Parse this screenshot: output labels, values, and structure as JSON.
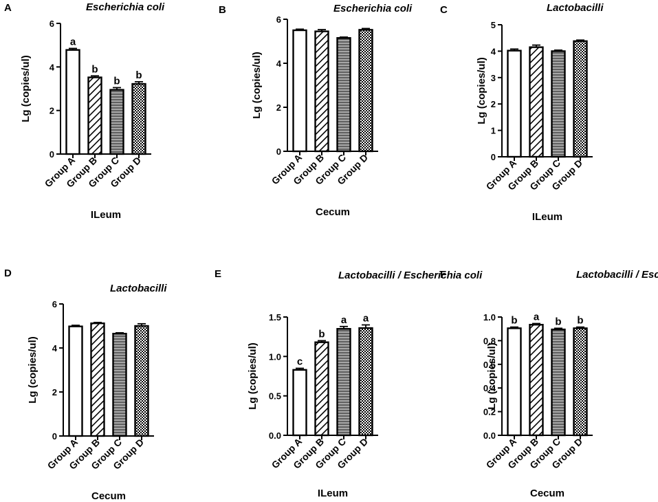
{
  "chart_data": [
    {
      "panel": "A",
      "type": "bar",
      "title": "Escherichia coli",
      "xlabel": "ILeum",
      "ylabel": "Lg (copies/ul)",
      "ylim": [
        0,
        6
      ],
      "yticks": [
        "0",
        "2",
        "4",
        "6"
      ],
      "categories": [
        "Group A",
        "Group B",
        "Group C",
        "Group D"
      ],
      "values": [
        4.78,
        3.52,
        2.95,
        3.22
      ],
      "errors": [
        0.07,
        0.07,
        0.1,
        0.1
      ],
      "labels": [
        "a",
        "b",
        "b",
        "b"
      ]
    },
    {
      "panel": "B",
      "type": "bar",
      "title": "Escherichia coli",
      "xlabel": "Cecum",
      "ylabel": "Lg (copies/ul)",
      "ylim": [
        0,
        6
      ],
      "yticks": [
        "0",
        "2",
        "4",
        "6"
      ],
      "categories": [
        "Group A",
        "Group B",
        "Group C",
        "Group D"
      ],
      "values": [
        5.5,
        5.45,
        5.15,
        5.52
      ],
      "errors": [
        0.05,
        0.08,
        0.04,
        0.06
      ],
      "labels": []
    },
    {
      "panel": "C",
      "type": "bar",
      "title": "Lactobacilli",
      "xlabel": "ILeum",
      "ylabel": "Lg (copies/ul)",
      "ylim": [
        0,
        5
      ],
      "yticks": [
        "0",
        "1",
        "2",
        "3",
        "4",
        "5"
      ],
      "categories": [
        "Group A",
        "Group B",
        "Group C",
        "Group D"
      ],
      "values": [
        4.02,
        4.15,
        4.0,
        4.38
      ],
      "errors": [
        0.06,
        0.08,
        0.04,
        0.04
      ],
      "labels": []
    },
    {
      "panel": "D",
      "type": "bar",
      "title": "Lactobacilli",
      "xlabel": "Cecum",
      "ylabel": "Lg (copies/ul)",
      "ylim": [
        0,
        6
      ],
      "yticks": [
        "0",
        "2",
        "4",
        "6"
      ],
      "categories": [
        "Group A",
        "Group B",
        "Group C",
        "Group D"
      ],
      "values": [
        4.98,
        5.12,
        4.65,
        5.0
      ],
      "errors": [
        0.05,
        0.04,
        0.04,
        0.1
      ],
      "labels": []
    },
    {
      "panel": "E",
      "type": "bar",
      "title": "Lactobacilli / Escherichia coli",
      "xlabel": "ILeum",
      "ylabel": "Lg (copies/ul)",
      "ylim": [
        0,
        1.5
      ],
      "yticks": [
        "0.0",
        "0.5",
        "1.0",
        "1.5"
      ],
      "categories": [
        "Group A",
        "Group B",
        "Group C",
        "Group D"
      ],
      "values": [
        0.83,
        1.18,
        1.35,
        1.36
      ],
      "errors": [
        0.02,
        0.02,
        0.03,
        0.04
      ],
      "labels": [
        "c",
        "b",
        "a",
        "a"
      ]
    },
    {
      "panel": "F",
      "type": "bar",
      "title": "Lactobacilli / Escherichia coli",
      "xlabel": "Cecum",
      "ylabel": "Lg (copies/ul)",
      "ylim": [
        0,
        1.0
      ],
      "yticks": [
        "0.0",
        "0.2",
        "0.4",
        "0.6",
        "0.8",
        "1.0"
      ],
      "categories": [
        "Group A",
        "Group B",
        "Group C",
        "Group D"
      ],
      "values": [
        0.905,
        0.935,
        0.895,
        0.905
      ],
      "errors": [
        0.01,
        0.01,
        0.01,
        0.01
      ],
      "labels": [
        "b",
        "a",
        "b",
        "b"
      ]
    }
  ]
}
